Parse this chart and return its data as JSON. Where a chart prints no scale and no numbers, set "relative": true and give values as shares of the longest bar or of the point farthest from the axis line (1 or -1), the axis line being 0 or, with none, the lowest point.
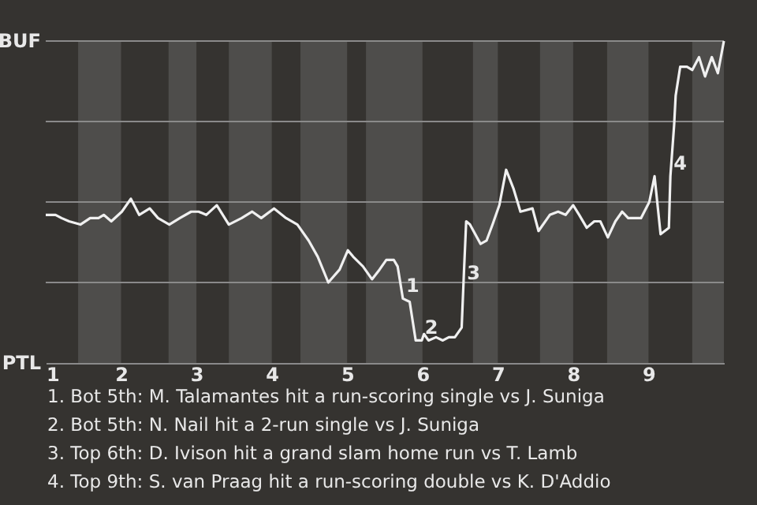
{
  "chart_data": {
    "type": "line",
    "relative": true,
    "x": [
      1,
      1.13,
      1.21,
      1.31,
      1.46,
      1.59,
      1.7,
      1.77,
      1.87,
      2.01,
      2.13,
      2.24,
      2.38,
      2.49,
      2.64,
      2.78,
      2.93,
      3.03,
      3.13,
      3.27,
      3.43,
      3.6,
      3.74,
      3.86,
      4.03,
      4.19,
      4.34,
      4.49,
      4.61,
      4.75,
      4.9,
      5.01,
      5.08,
      5.21,
      5.33,
      5.43,
      5.52,
      5.62,
      5.67,
      5.74,
      5.83,
      5.91,
      5.99,
      6.02,
      6.08,
      6.18,
      6.27,
      6.35,
      6.43,
      6.52,
      6.55,
      6.58,
      6.63,
      6.77,
      6.85,
      6.93,
      7.02,
      7.11,
      7.21,
      7.3,
      7.46,
      7.54,
      7.69,
      7.8,
      7.9,
      8,
      8.08,
      8.18,
      8.28,
      8.36,
      8.46,
      8.56,
      8.65,
      8.73,
      8.9,
      9.01,
      9.08,
      9.16,
      9.27,
      9.29,
      9.34,
      9.36,
      9.42,
      9.51,
      9.58,
      9.67,
      9.75,
      9.84,
      9.92,
      10
    ],
    "series": [
      {
        "color": "#f0f0f0",
        "values": [
          0.46,
          0.46,
          0.45,
          0.44,
          0.43,
          0.45,
          0.45,
          0.46,
          0.44,
          0.47,
          0.51,
          0.46,
          0.48,
          0.45,
          0.43,
          0.45,
          0.47,
          0.47,
          0.46,
          0.49,
          0.43,
          0.45,
          0.47,
          0.45,
          0.48,
          0.45,
          0.43,
          0.38,
          0.33,
          0.25,
          0.29,
          0.35,
          0.33,
          0.3,
          0.26,
          0.29,
          0.32,
          0.32,
          0.3,
          0.2,
          0.19,
          0.07,
          0.07,
          0.09,
          0.07,
          0.08,
          0.07,
          0.08,
          0.08,
          0.11,
          0.28,
          0.44,
          0.43,
          0.37,
          0.38,
          0.43,
          0.49,
          0.6,
          0.54,
          0.47,
          0.48,
          0.41,
          0.46,
          0.47,
          0.46,
          0.49,
          0.46,
          0.42,
          0.44,
          0.44,
          0.39,
          0.44,
          0.47,
          0.45,
          0.45,
          0.5,
          0.58,
          0.4,
          0.42,
          0.58,
          0.74,
          0.83,
          0.92,
          0.92,
          0.91,
          0.95,
          0.89,
          0.95,
          0.9,
          1.0
        ]
      }
    ],
    "xlim": [
      1,
      10
    ],
    "xticks": [
      1,
      2,
      3,
      4,
      5,
      6,
      7,
      8,
      9
    ],
    "grid": "y",
    "bands": [
      {
        "axis": "x",
        "from": 1.43,
        "to": 2,
        "color": "#4e4d4b"
      },
      {
        "axis": "x",
        "from": 2.63,
        "to": 3,
        "color": "#4e4d4b"
      },
      {
        "axis": "x",
        "from": 3.43,
        "to": 4,
        "color": "#4e4d4b"
      },
      {
        "axis": "x",
        "from": 4.38,
        "to": 5,
        "color": "#4e4d4b"
      },
      {
        "axis": "x",
        "from": 5.25,
        "to": 6,
        "color": "#4e4d4b"
      },
      {
        "axis": "x",
        "from": 6.67,
        "to": 7,
        "color": "#4e4d4b"
      },
      {
        "axis": "x",
        "from": 7.56,
        "to": 8,
        "color": "#4e4d4b"
      },
      {
        "axis": "x",
        "from": 8.45,
        "to": 9,
        "color": "#4e4d4b"
      },
      {
        "axis": "x",
        "from": 9.58,
        "to": 10,
        "color": "#4e4d4b"
      }
    ],
    "annotations": [
      "BUF",
      "PTL",
      {
        "text": "1",
        "x": 5.74,
        "y": 0.2
      },
      {
        "text": "2",
        "x": 5.99,
        "y": 0.07
      },
      {
        "text": "3",
        "x": 6.55,
        "y": 0.24
      },
      {
        "text": "4",
        "x": 9.29,
        "y": 0.58
      },
      "1. Bot 5th: M. Talamantes hit a run-scoring single vs J. Suniga",
      "2. Bot 5th: N. Nail hit a 2-run single vs J. Suniga",
      "3. Top 6th: D. Ivison hit a grand slam home run vs T. Lamb",
      "4. Top 9th: S. van Praag hit a run-scoring double vs K. D'Addio"
    ]
  }
}
